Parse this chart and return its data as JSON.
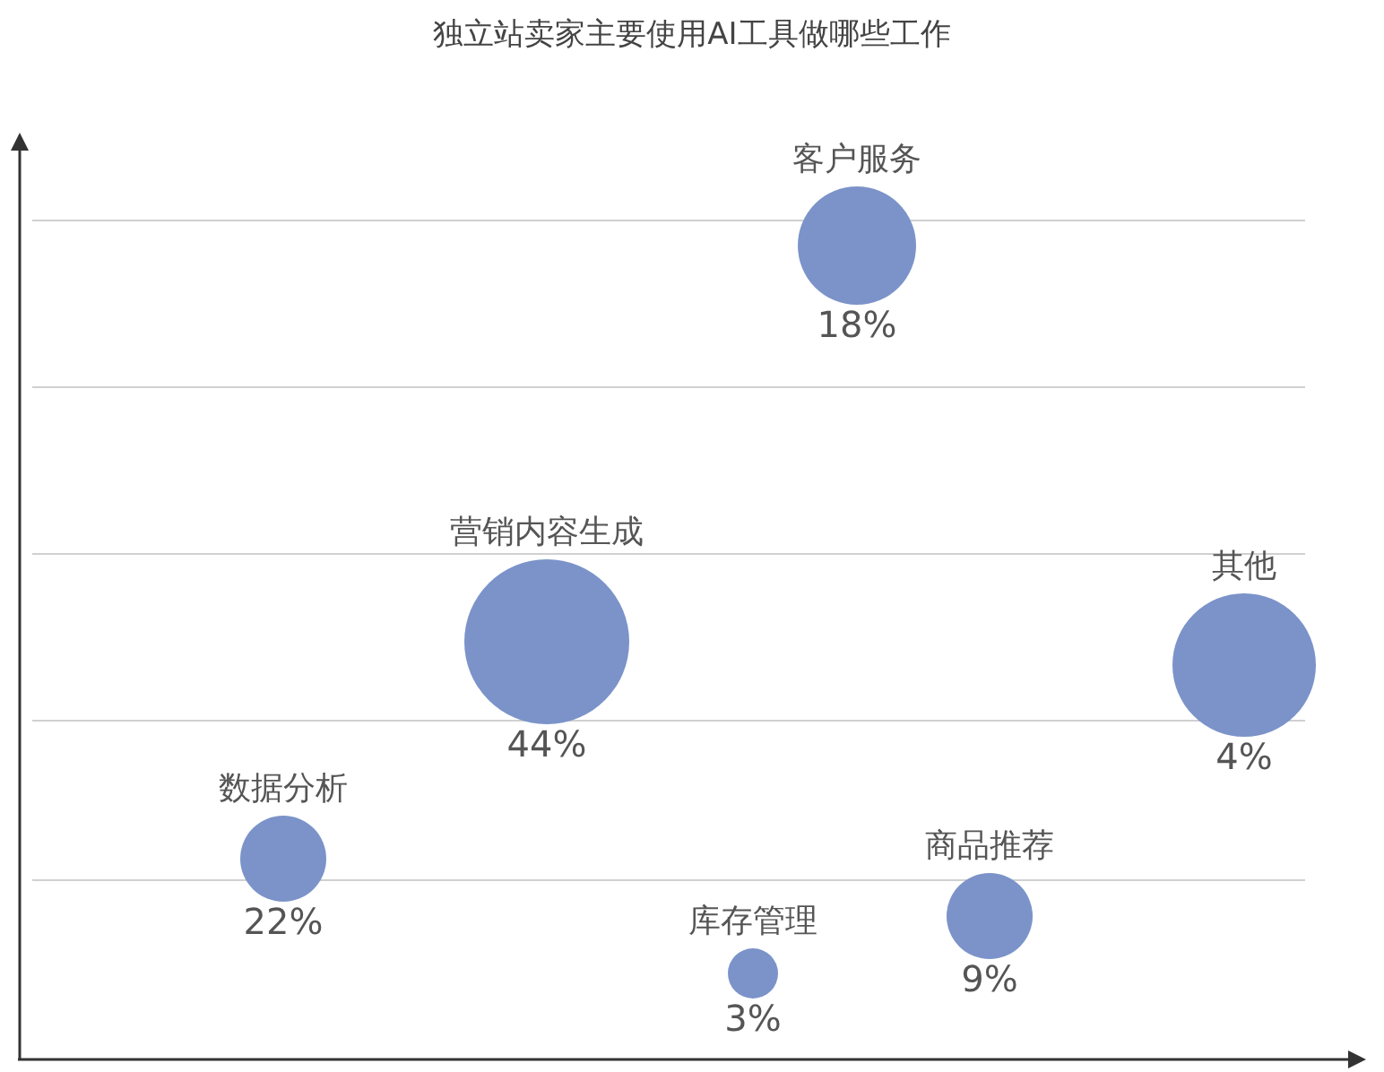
{
  "chart_data": {
    "type": "other",
    "title": "独立站卖家主要使用AI工具做哪些工作",
    "color": "#7b93c9",
    "categories": [
      "数据分析",
      "营销内容生成",
      "库存管理",
      "客户服务",
      "商品推荐",
      "其他"
    ],
    "values": [
      22,
      44,
      3,
      18,
      9,
      4
    ],
    "value_labels": [
      "22%",
      "44%",
      "3%",
      "18%",
      "9%",
      "4%"
    ]
  }
}
